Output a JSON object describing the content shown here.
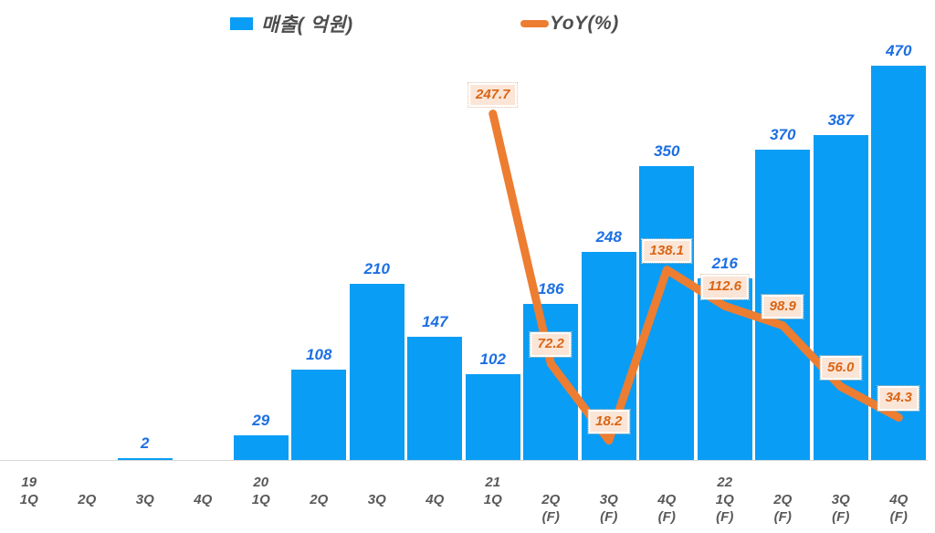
{
  "legend": {
    "revenue_label": "매출( 억원)",
    "yoy_label": "YoY(%)"
  },
  "colors": {
    "bar": "#099df5",
    "bar_label": "#1c6fe3",
    "line": "#ed7d31",
    "yoy_label_text": "#d96515",
    "yoy_label_bg": "#fbe5d6",
    "axis_line": "#d9d9d9",
    "x_label": "#595959",
    "legend_text": "#4d4d4d"
  },
  "x_axis": {
    "slots": [
      {
        "year": "19",
        "quarter": "1Q",
        "forecast": ""
      },
      {
        "year": "",
        "quarter": "2Q",
        "forecast": ""
      },
      {
        "year": "",
        "quarter": "3Q",
        "forecast": ""
      },
      {
        "year": "",
        "quarter": "4Q",
        "forecast": ""
      },
      {
        "year": "20",
        "quarter": "1Q",
        "forecast": ""
      },
      {
        "year": "",
        "quarter": "2Q",
        "forecast": ""
      },
      {
        "year": "",
        "quarter": "3Q",
        "forecast": ""
      },
      {
        "year": "",
        "quarter": "4Q",
        "forecast": ""
      },
      {
        "year": "21",
        "quarter": "1Q",
        "forecast": ""
      },
      {
        "year": "",
        "quarter": "2Q",
        "forecast": "(F)"
      },
      {
        "year": "",
        "quarter": "3Q",
        "forecast": "(F)"
      },
      {
        "year": "",
        "quarter": "4Q",
        "forecast": "(F)"
      },
      {
        "year": "22",
        "quarter": "1Q",
        "forecast": "(F)"
      },
      {
        "year": "",
        "quarter": "2Q",
        "forecast": "(F)"
      },
      {
        "year": "",
        "quarter": "3Q",
        "forecast": "(F)"
      },
      {
        "year": "",
        "quarter": "4Q",
        "forecast": "(F)"
      }
    ]
  },
  "chart_data": {
    "type": "bar",
    "subtype": "combo-bar-line",
    "title": "",
    "xlabel": "",
    "ylabel": "",
    "grid": false,
    "legend_position": "top",
    "categories": [
      "19 1Q",
      "19 2Q",
      "19 3Q",
      "19 4Q",
      "20 1Q",
      "20 2Q",
      "20 3Q",
      "20 4Q",
      "21 1Q",
      "21 2Q (F)",
      "21 3Q (F)",
      "21 4Q (F)",
      "22 1Q (F)",
      "22 2Q (F)",
      "22 3Q (F)",
      "22 4Q (F)"
    ],
    "series": [
      {
        "name": "매출( 억원)",
        "type": "bar",
        "axis": "left",
        "ylim": [
          0,
          500
        ],
        "values": [
          null,
          null,
          2,
          null,
          29,
          108,
          210,
          147,
          102,
          186,
          248,
          350,
          216,
          370,
          387,
          470
        ]
      },
      {
        "name": "YoY(%)",
        "type": "line",
        "axis": "right",
        "ylim": [
          0,
          300
        ],
        "values": [
          null,
          null,
          null,
          null,
          null,
          null,
          null,
          null,
          247.7,
          72.2,
          18.2,
          138.1,
          112.6,
          98.9,
          56.0,
          34.3
        ],
        "labels": [
          null,
          null,
          null,
          null,
          null,
          null,
          null,
          null,
          "247.7",
          "72.2",
          "18.2",
          "138.1",
          "112.6",
          "98.9",
          "56.0",
          "34.3"
        ]
      }
    ]
  }
}
